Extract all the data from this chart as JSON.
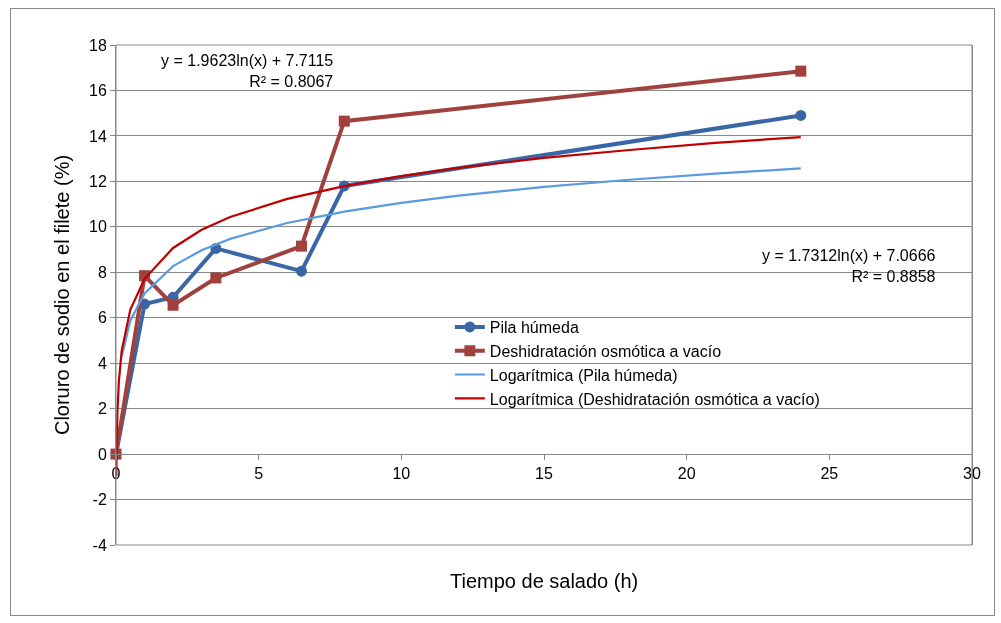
{
  "chart_data": {
    "type": "line",
    "xlabel": "Tiempo de salado (h)",
    "ylabel": "Cloruro de sodio en el filete (%)",
    "xlim": [
      0,
      30
    ],
    "xticks": [
      0,
      5,
      10,
      15,
      20,
      25,
      30
    ],
    "ylim": [
      -4,
      18
    ],
    "yticks": [
      -4,
      -2,
      0,
      2,
      4,
      6,
      8,
      10,
      12,
      14,
      16,
      18
    ],
    "grid": "y",
    "legend": "right",
    "line_style": "solid",
    "annotations": [
      "y = 1.9623ln(x) + 7.7115\nR² = 0.8067",
      "y = 1.7312ln(x) + 7.0666\nR² = 0.8858"
    ],
    "series": [
      {
        "name": "Pila húmeda",
        "color": "#3a66a6",
        "marker": "circle",
        "x": [
          0,
          1,
          2,
          3.5,
          6.5,
          8,
          24
        ],
        "values": [
          0,
          6.6,
          6.9,
          9.05,
          8.05,
          11.8,
          14.9
        ]
      },
      {
        "name": "Deshidratación osmótica a vacío",
        "color": "#a0413d",
        "marker": "square",
        "x": [
          0,
          1,
          2,
          3.5,
          6.5,
          8,
          24
        ],
        "values": [
          0,
          7.85,
          6.55,
          7.75,
          9.15,
          14.65,
          16.85
        ]
      },
      {
        "name": "Logarítmica (Pila húmeda)",
        "color": "#5a9be0",
        "marker": "none",
        "x": [
          0.2,
          0.5,
          1,
          2,
          3,
          4,
          6,
          8,
          10,
          12,
          15,
          18,
          21,
          24
        ],
        "values": [
          4.28,
          5.87,
          7.07,
          8.27,
          8.97,
          9.47,
          10.17,
          10.67,
          11.05,
          11.37,
          11.76,
          12.07,
          12.34,
          12.57
        ]
      },
      {
        "name": "Logarítmica (Deshidratación osmótica a vacío)",
        "color": "#c00000",
        "marker": "none",
        "x": [
          0.012,
          0.02,
          0.05,
          0.1,
          0.2,
          0.5,
          1,
          2,
          3,
          4,
          6,
          8,
          10,
          12,
          15,
          18,
          21,
          24
        ],
        "values": [
          -0.96,
          0.04,
          1.83,
          3.19,
          4.55,
          6.35,
          7.71,
          9.07,
          9.87,
          10.43,
          11.23,
          11.79,
          12.23,
          12.59,
          13.03,
          13.38,
          13.69,
          13.95
        ]
      }
    ]
  }
}
